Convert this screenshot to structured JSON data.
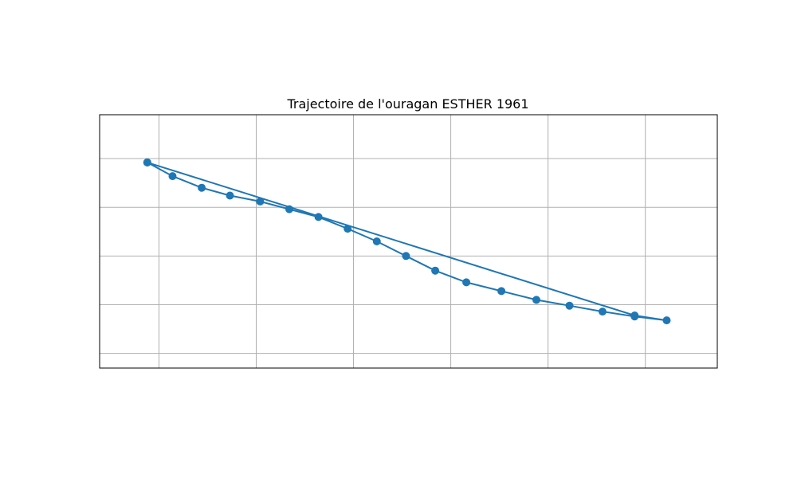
{
  "chart_data": {
    "type": "line",
    "title": "Trajectoire de l'ouragan ESTHER 1961",
    "xlabel": "",
    "ylabel": "",
    "xlim": [
      -94.5,
      -31.0
    ],
    "ylim": [
      9.0,
      35.0
    ],
    "x_gridlines": [
      -88.4,
      -78.4,
      -68.4,
      -58.4,
      -48.4,
      -38.4
    ],
    "y_gridlines": [
      10.5,
      15.5,
      20.5,
      25.5,
      30.5
    ],
    "grid": true,
    "marker": "circle",
    "line_color": "#1f77b4",
    "series": [
      {
        "x": [
          -89.6,
          -87.0,
          -84.0,
          -81.1,
          -78.0,
          -75.0,
          -72.0,
          -69.0,
          -66.0,
          -63.0,
          -60.0,
          -56.8,
          -53.2,
          -49.6,
          -46.2,
          -42.8,
          -39.5,
          -36.2,
          -39.5,
          -89.6
        ],
        "y": [
          30.1,
          28.7,
          27.5,
          26.7,
          26.1,
          25.3,
          24.5,
          23.3,
          22.0,
          20.5,
          19.0,
          17.8,
          16.9,
          16.0,
          15.4,
          14.8,
          14.3,
          13.9,
          14.4,
          30.1
        ]
      }
    ]
  }
}
